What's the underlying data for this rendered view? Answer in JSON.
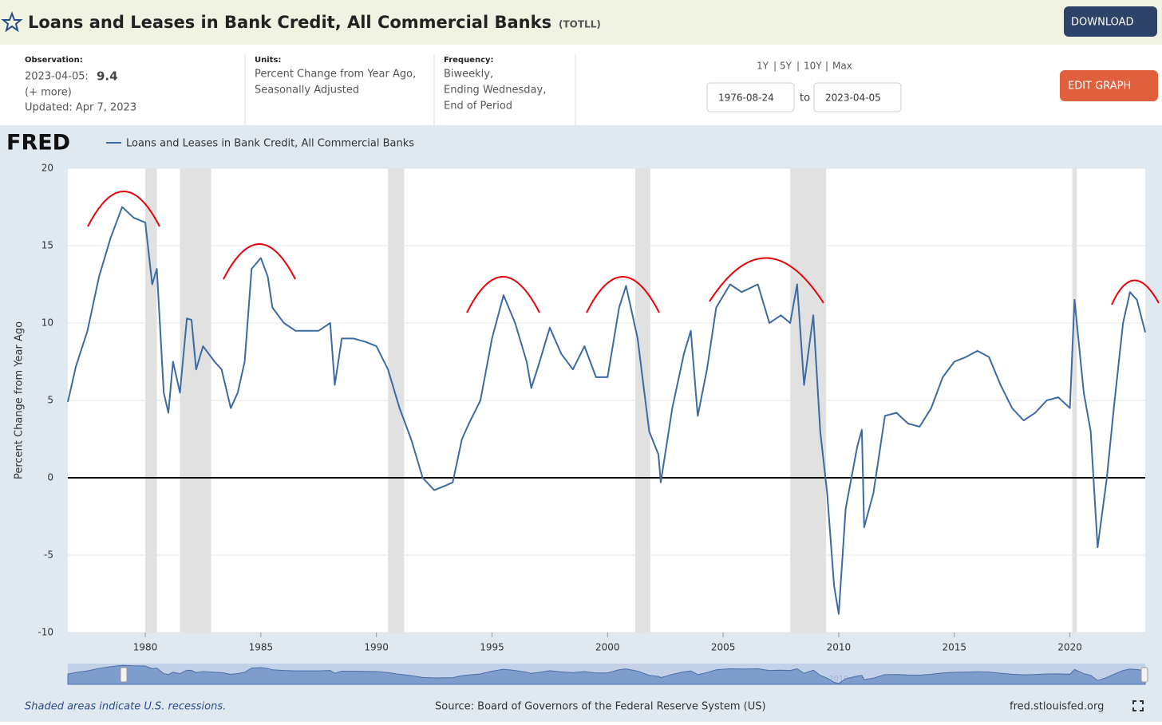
{
  "header": {
    "title": "Loans and Leases in Bank Credit, All Commercial Banks",
    "code": "(TOTLL)",
    "download": "DOWNLOAD"
  },
  "info": {
    "observation_label": "Observation:",
    "observation_date": "2023-04-05:",
    "observation_value": "9.4",
    "more": "(+ more)",
    "updated": "Updated: Apr 7, 2023",
    "units_label": "Units:",
    "units": [
      "Percent Change from Year Ago,",
      "Seasonally Adjusted"
    ],
    "frequency_label": "Frequency:",
    "frequency": [
      "Biweekly,",
      "Ending Wednesday,",
      "End of Period"
    ]
  },
  "range": {
    "buttons": [
      "1Y",
      "5Y",
      "10Y",
      "Max"
    ],
    "start": "1976-08-24",
    "to": "to",
    "end": "2023-04-05",
    "edit": "EDIT GRAPH"
  },
  "footer": {
    "note": "Shaded areas indicate U.S. recessions.",
    "source": "Source: Board of Governors of the Federal Reserve System (US)",
    "site": "fred.stlouisfed.org"
  },
  "chart_data": {
    "type": "line",
    "logo": "FRED",
    "ylabel": "Percent Change from Year Ago",
    "xlim": [
      1976.65,
      2023.26
    ],
    "xticks": [
      1980,
      1985,
      1990,
      1995,
      2000,
      2005,
      2010,
      2015,
      2020
    ],
    "ylim": [
      -10,
      20
    ],
    "yticks": [
      -10,
      -5,
      0,
      5,
      10,
      15,
      20
    ],
    "grid": true,
    "hline": 0,
    "recessions": [
      [
        1980.0,
        1980.5
      ],
      [
        1981.5,
        1982.85
      ],
      [
        1990.5,
        1991.2
      ],
      [
        2001.2,
        2001.85
      ],
      [
        2007.9,
        2009.45
      ],
      [
        2020.1,
        2020.3
      ]
    ],
    "x": [
      1976.65,
      1977.0,
      1977.5,
      1978.0,
      1978.5,
      1979.0,
      1979.5,
      1980.0,
      1980.3,
      1980.5,
      1980.8,
      1981.0,
      1981.2,
      1981.5,
      1981.8,
      1982.0,
      1982.2,
      1982.5,
      1983.0,
      1983.3,
      1983.7,
      1984.0,
      1984.3,
      1984.6,
      1985.0,
      1985.3,
      1985.5,
      1986.0,
      1986.5,
      1987.0,
      1987.5,
      1988.0,
      1988.2,
      1988.5,
      1989.0,
      1989.5,
      1990.0,
      1990.5,
      1991.0,
      1991.5,
      1992.0,
      1992.5,
      1993.0,
      1993.3,
      1993.7,
      1994.0,
      1994.5,
      1995.0,
      1995.5,
      1996.0,
      1996.5,
      1996.7,
      1997.0,
      1997.5,
      1998.0,
      1998.5,
      1999.0,
      1999.5,
      2000.0,
      2000.5,
      2000.8,
      2001.3,
      2001.8,
      2002.2,
      2002.3,
      2002.8,
      2003.3,
      2003.6,
      2003.9,
      2004.3,
      2004.7,
      2005.3,
      2005.8,
      2006.5,
      2007.0,
      2007.5,
      2007.9,
      2008.2,
      2008.5,
      2008.9,
      2009.2,
      2009.5,
      2009.8,
      2010.0,
      2010.3,
      2010.8,
      2011.0,
      2011.1,
      2011.5,
      2012.0,
      2012.5,
      2013.0,
      2013.5,
      2014.0,
      2014.5,
      2015.0,
      2015.5,
      2016.0,
      2016.5,
      2017.0,
      2017.5,
      2018.0,
      2018.5,
      2019.0,
      2019.5,
      2020.0,
      2020.2,
      2020.6,
      2020.9,
      2021.2,
      2021.6,
      2021.9,
      2022.3,
      2022.6,
      2022.9,
      2023.26
    ],
    "series": [
      {
        "name": "Loans and Leases in Bank Credit, All Commercial Banks",
        "color": "#3d6aa3",
        "values": [
          4.9,
          7.2,
          9.5,
          13,
          15.5,
          17.5,
          16.8,
          16.5,
          12.5,
          13.5,
          5.5,
          4.2,
          7.5,
          5.5,
          10.3,
          10.2,
          7,
          8.5,
          7.5,
          7,
          4.5,
          5.5,
          7.5,
          13.5,
          14.2,
          13,
          11,
          10,
          9.5,
          9.5,
          9.5,
          10,
          6,
          9,
          9,
          8.8,
          8.5,
          7,
          4.5,
          2.5,
          0,
          -0.8,
          -0.5,
          -0.3,
          2.5,
          3.5,
          5,
          9,
          11.8,
          10,
          7.5,
          5.8,
          7.2,
          9.7,
          8,
          7,
          8.5,
          6.5,
          6.5,
          11,
          12.4,
          9,
          3,
          1.5,
          -0.3,
          4.5,
          8,
          9.5,
          4,
          7,
          11,
          12.5,
          12,
          12.5,
          10,
          10.5,
          10,
          12.5,
          6,
          10.5,
          3,
          -1,
          -7,
          -8.8,
          -2,
          2,
          3.1,
          -3.2,
          -1,
          4,
          4.2,
          3.5,
          3.3,
          4.5,
          6.5,
          7.5,
          7.8,
          8.2,
          7.8,
          6,
          4.5,
          3.7,
          4.2,
          5,
          5.2,
          4.5,
          11.5,
          5.5,
          3,
          -4.5,
          0,
          4.5,
          10,
          12,
          11.5,
          9.4
        ]
      }
    ]
  }
}
